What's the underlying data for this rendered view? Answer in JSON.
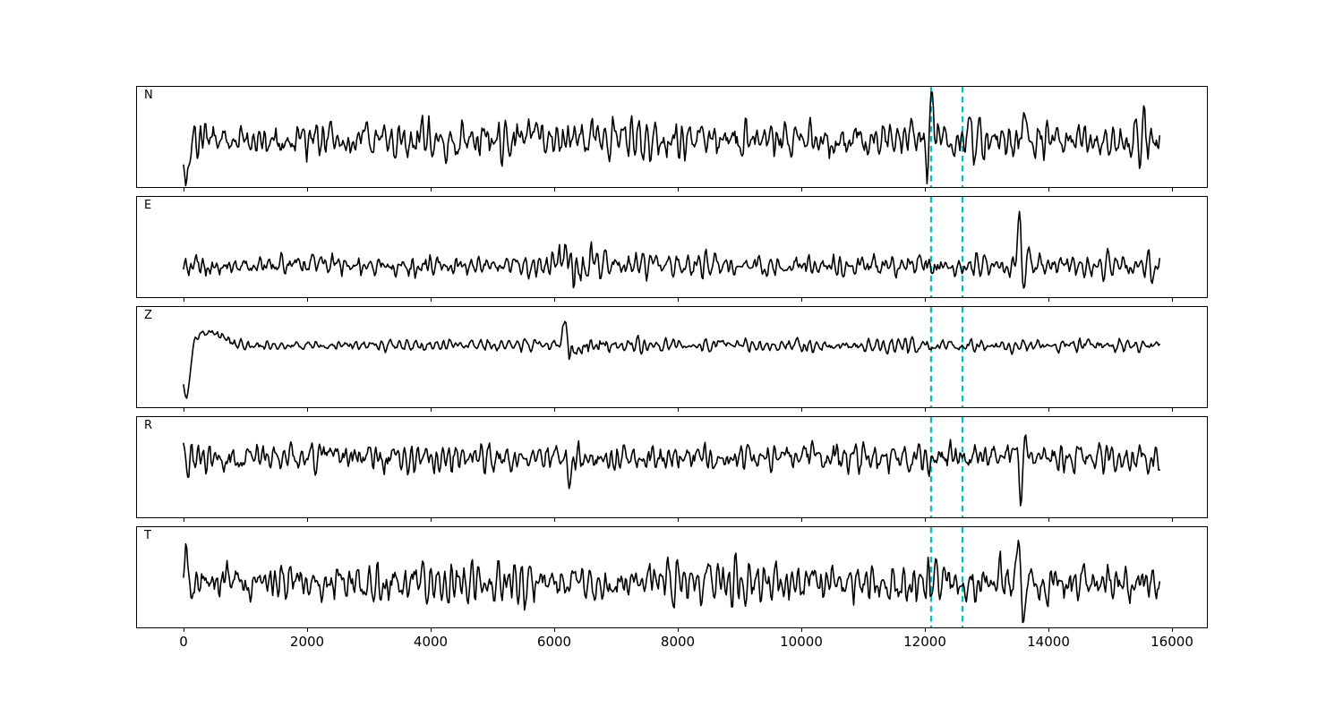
{
  "figure": {
    "background": "#ffffff",
    "title": ""
  },
  "chart_data": {
    "type": "line",
    "title": "",
    "xlabel": "",
    "ylabel": "",
    "description": "Five stacked seismogram traces (components N, E, Z, R, T) of band-passed noise with an initial filter transient on Z, a noise burst near x=6200, a large spike near x=13550 on E/R/T, and two dashed cyan phase-marker lines near x=12100 and x=12610.",
    "trace_color": "#000000",
    "x_axis": {
      "ticks": [
        0,
        2000,
        4000,
        6000,
        8000,
        10000,
        12000,
        14000,
        16000
      ],
      "range": [
        -770,
        16600
      ],
      "data_span": [
        0,
        15800
      ],
      "grid": false
    },
    "vlines": {
      "positions": [
        12100,
        12610
      ],
      "color": "#00bfc4",
      "style": "dashed"
    },
    "synthesis": {
      "n_samples": 920,
      "ar_coeffs": [
        1.0,
        -0.65
      ]
    },
    "panels": [
      {
        "label": "N",
        "seed": 20,
        "noise_amp": 10.5,
        "baseline": 59,
        "envelope": [
          [
            0,
            1
          ],
          [
            15800,
            1
          ]
        ],
        "spikes": [
          [
            40,
            60,
            -46
          ],
          [
            5700,
            45,
            26
          ],
          [
            12040,
            45,
            -36
          ],
          [
            12115,
            45,
            50
          ],
          [
            13580,
            50,
            24
          ]
        ]
      },
      {
        "label": "E",
        "seed": 7,
        "noise_amp": 6.2,
        "baseline": 77,
        "envelope": [
          [
            0,
            0.9
          ],
          [
            6000,
            1
          ],
          [
            6150,
            1.9
          ],
          [
            6600,
            1.5
          ],
          [
            7000,
            1
          ],
          [
            15800,
            1
          ]
        ],
        "spikes": [
          [
            6170,
            40,
            20
          ],
          [
            13530,
            42,
            62
          ],
          [
            13595,
            42,
            -33
          ],
          [
            13660,
            40,
            18
          ]
        ]
      },
      {
        "label": "Z",
        "seed": 5,
        "noise_amp": 3.1,
        "baseline": 43,
        "envelope": [
          [
            0,
            0.35
          ],
          [
            700,
            1.25
          ],
          [
            1400,
            1
          ],
          [
            6080,
            1
          ],
          [
            6160,
            2.3
          ],
          [
            6700,
            1.9
          ],
          [
            7200,
            1.15
          ],
          [
            15800,
            1.15
          ]
        ],
        "spikes": [
          [
            45,
            85,
            -62
          ],
          [
            420,
            300,
            15
          ],
          [
            6165,
            38,
            24
          ],
          [
            6290,
            55,
            -13
          ]
        ]
      },
      {
        "label": "R",
        "seed": 13,
        "noise_amp": 7.6,
        "baseline": 45,
        "envelope": [
          [
            0,
            1
          ],
          [
            10300,
            1
          ],
          [
            10600,
            1.35
          ],
          [
            11100,
            1
          ],
          [
            15800,
            1
          ]
        ],
        "spikes": [
          [
            6250,
            40,
            -28
          ],
          [
            13495,
            45,
            24
          ],
          [
            13550,
            45,
            -62
          ],
          [
            13615,
            45,
            30
          ]
        ]
      },
      {
        "label": "T",
        "seed": 29,
        "noise_amp": 11,
        "baseline": 62,
        "envelope": [
          [
            0,
            1
          ],
          [
            15800,
            1
          ]
        ],
        "spikes": [
          [
            35,
            55,
            28
          ],
          [
            13530,
            42,
            46
          ],
          [
            13600,
            48,
            -40
          ]
        ]
      }
    ]
  }
}
